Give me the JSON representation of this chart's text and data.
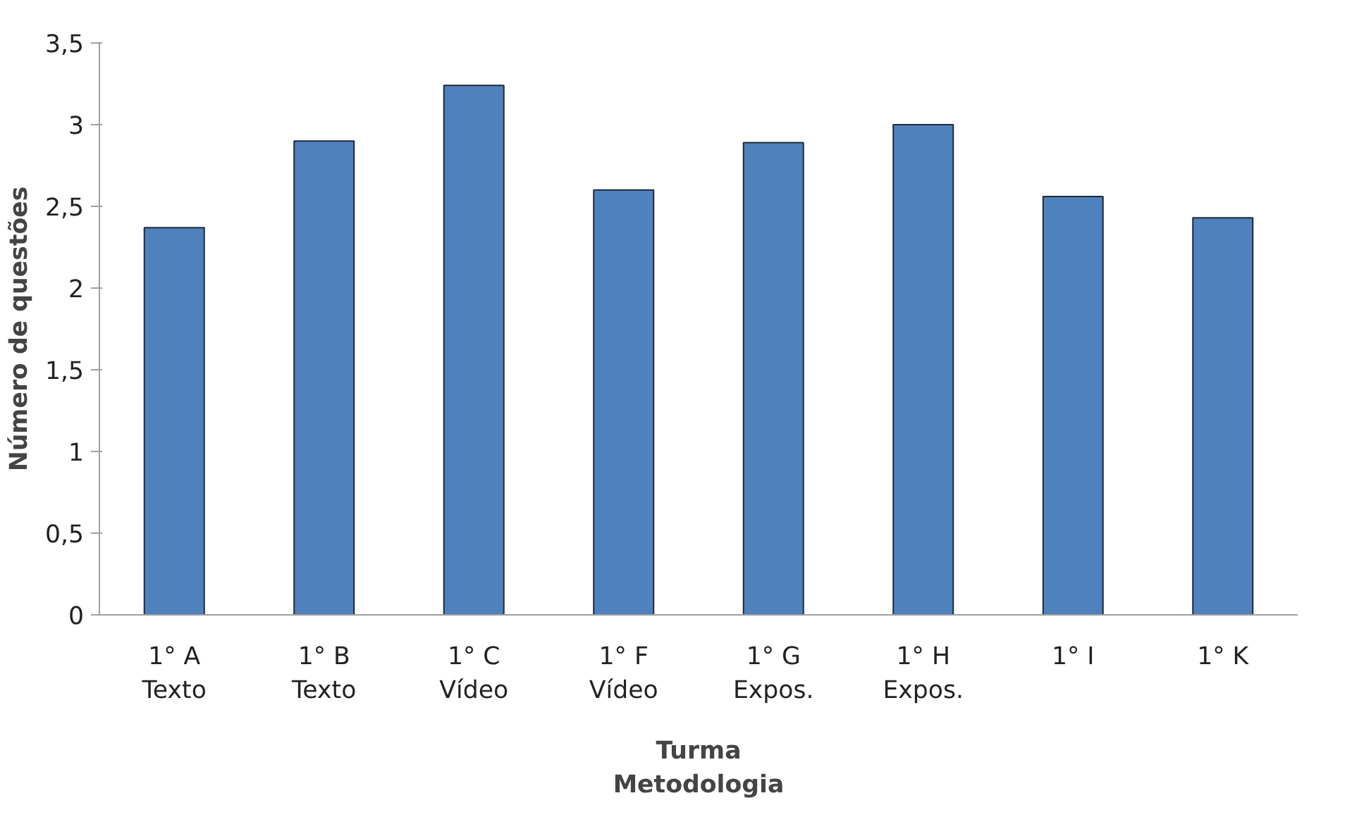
{
  "chart_data": {
    "type": "bar",
    "xlabel": "Turma\nMetodologia",
    "ylabel": "Número de questões",
    "categories": [
      "1° A\nTexto",
      "1° B\nTexto",
      "1° C\nVídeo",
      "1° F\nVídeo",
      "1° G\nExpos.",
      "1° H\nExpos.",
      "1° I",
      "1° K"
    ],
    "values": [
      2.37,
      2.9,
      3.24,
      2.6,
      2.89,
      3.0,
      2.56,
      2.43
    ],
    "color": "#4f81bd",
    "ylim": [
      0,
      3.5
    ],
    "yticks": [
      {
        "value": 0,
        "label": "0"
      },
      {
        "value": 0.5,
        "label": "0,5"
      },
      {
        "value": 1,
        "label": "1"
      },
      {
        "value": 1.5,
        "label": "1,5"
      },
      {
        "value": 2,
        "label": "2"
      },
      {
        "value": 2.5,
        "label": "2,5"
      },
      {
        "value": 3,
        "label": "3"
      },
      {
        "value": 3.5,
        "label": "3,5"
      }
    ],
    "grid": false
  }
}
